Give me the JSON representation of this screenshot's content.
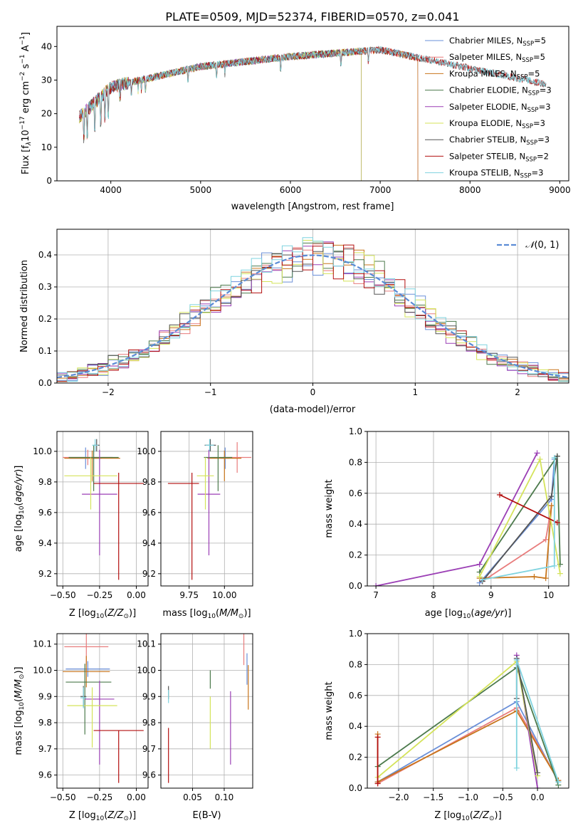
{
  "figure_title": "PLATE=0509, MJD=52374, FIBERID=0570, z=0.041",
  "model_colors": [
    "#6a8fd8",
    "#e87c7c",
    "#c8751b",
    "#4c7a4c",
    "#9b3fb5",
    "#d4e35a",
    "#555555",
    "#b30f0f",
    "#7fd3df"
  ],
  "chart_data": [
    {
      "id": "spectrum",
      "type": "line",
      "title": "PLATE=0509, MJD=52374, FIBERID=0570, z=0.041",
      "xlabel": "wavelength [Angstrom, rest frame]",
      "ylabel_parts": {
        "pre": "Flux [f",
        "sub1": "λ",
        "mid": "10",
        "sup1": "−17",
        "mid2": " erg cm",
        "sup2": "−2",
        "mid3": " s",
        "sup3": "−1",
        "mid4": " A",
        "sup4": "−1",
        "post": "]"
      },
      "xlim": [
        3400,
        9100
      ],
      "ylim": [
        0,
        46
      ],
      "xticks": [
        4000,
        5000,
        6000,
        7000,
        8000,
        9000
      ],
      "yticks": [
        0,
        10,
        20,
        30,
        40
      ],
      "grid": false,
      "legend_position": "top-right",
      "series": [
        {
          "name": "Chabrier MILES, N",
          "sub": "SSP",
          "suffix": "=5",
          "coverage": [
            3650,
            7420
          ]
        },
        {
          "name": "Salpeter MILES, N",
          "sub": "SSP",
          "suffix": "=5",
          "coverage": [
            3650,
            7420
          ]
        },
        {
          "name": "Kroupa MILES, N",
          "sub": "SSP",
          "suffix": "=5",
          "coverage": [
            3650,
            7420
          ]
        },
        {
          "name": "Chabrier ELODIE, N",
          "sub": "SSP",
          "suffix": "=3",
          "coverage": [
            3650,
            6790
          ]
        },
        {
          "name": "Salpeter ELODIE, N",
          "sub": "SSP",
          "suffix": "=3",
          "coverage": [
            3650,
            6790
          ]
        },
        {
          "name": "Kroupa ELODIE, N",
          "sub": "SSP",
          "suffix": "=3",
          "coverage": [
            3650,
            6790
          ]
        },
        {
          "name": "Chabrier STELIB, N",
          "sub": "SSP",
          "suffix": "=3",
          "coverage": [
            3650,
            8850
          ]
        },
        {
          "name": "Salpeter STELIB, N",
          "sub": "SSP",
          "suffix": "=2",
          "coverage": [
            3650,
            8850
          ]
        },
        {
          "name": "Kroupa STELIB, N",
          "sub": "SSP",
          "suffix": "=3",
          "coverage": [
            3650,
            8850
          ]
        }
      ]
    },
    {
      "id": "residuals",
      "type": "histogram",
      "xlabel": "(data-model)/error",
      "ylabel": "Normed distribution",
      "xlim": [
        -2.5,
        2.5
      ],
      "ylim": [
        0,
        0.48
      ],
      "xticks": [
        -2,
        -1,
        0,
        1,
        2
      ],
      "yticks": [
        0.0,
        0.1,
        0.2,
        0.3,
        0.4
      ],
      "grid": true,
      "legend_position": "top-right",
      "legend": "N(0,1)",
      "bin_width": 0.1
    },
    {
      "id": "age_vs_z",
      "type": "errorbar",
      "xlabel": "Z [log10(Z/Z⊙)]",
      "ylabel": "age  [log10(age/yr)]",
      "xlim": [
        -0.54,
        0.08
      ],
      "ylim": [
        9.12,
        10.13
      ],
      "xticks": [
        -0.5,
        -0.25,
        0.0
      ],
      "yticks": [
        9.2,
        9.4,
        9.6,
        9.8,
        10.0
      ],
      "grid": true,
      "points": [
        {
          "x": -0.345,
          "y": 9.955,
          "xerr": [
            0.11,
            0.11
          ],
          "yerr": [
            0.07,
            0.07
          ]
        },
        {
          "x": -0.33,
          "y": 9.96,
          "xerr": [
            0.17,
            0.17
          ],
          "yerr": [
            0.05,
            0.05
          ]
        },
        {
          "x": -0.3,
          "y": 9.955,
          "xerr": [
            0.19,
            0.19
          ],
          "yerr": [
            0.15,
            0.05
          ]
        },
        {
          "x": -0.29,
          "y": 9.96,
          "xerr": [
            0.17,
            0.17
          ],
          "yerr": [
            0.22,
            0.08
          ]
        },
        {
          "x": -0.25,
          "y": 9.72,
          "xerr": [
            0.12,
            0.12
          ],
          "yerr": [
            0.4,
            0.29
          ]
        },
        {
          "x": -0.31,
          "y": 9.84,
          "xerr": [
            0.18,
            0.18
          ],
          "yerr": [
            0.22,
            0.12
          ]
        },
        {
          "x": -0.27,
          "y": 10.04,
          "xerr": [
            0.02,
            0.02
          ],
          "yerr": [
            0.04,
            0.04
          ]
        },
        {
          "x": -0.12,
          "y": 9.79,
          "xerr": [
            0.17,
            0.17
          ],
          "yerr": [
            0.63,
            0.07
          ]
        },
        {
          "x": -0.28,
          "y": 10.04,
          "xerr": [
            0.02,
            0.02
          ],
          "yerr": [
            0.04,
            0.04
          ]
        }
      ]
    },
    {
      "id": "age_vs_mass",
      "type": "errorbar",
      "xlabel": "mass [log10(M/M⊙)]",
      "ylabel": "",
      "xlim": [
        9.55,
        10.2
      ],
      "ylim": [
        9.12,
        10.13
      ],
      "xticks": [
        9.75,
        10.0
      ],
      "yticks": [
        9.2,
        9.4,
        9.6,
        9.8,
        10.0
      ],
      "grid": true,
      "points": [
        {
          "x": 10.005,
          "y": 9.955,
          "xerr": [
            0.03,
            0.03
          ],
          "yerr": [
            0.07,
            0.07
          ]
        },
        {
          "x": 10.09,
          "y": 9.96,
          "xerr": [
            0.1,
            0.1
          ],
          "yerr": [
            0.1,
            0.1
          ]
        },
        {
          "x": 10.0,
          "y": 9.955,
          "xerr": [
            0.12,
            0.12
          ],
          "yerr": [
            0.15,
            0.05
          ]
        },
        {
          "x": 9.955,
          "y": 9.96,
          "xerr": [
            0.1,
            0.1
          ],
          "yerr": [
            0.22,
            0.08
          ]
        },
        {
          "x": 9.89,
          "y": 9.72,
          "xerr": [
            0.08,
            0.08
          ],
          "yerr": [
            0.4,
            0.29
          ]
        },
        {
          "x": 9.865,
          "y": 9.84,
          "xerr": [
            0.06,
            0.06
          ],
          "yerr": [
            0.22,
            0.12
          ]
        },
        {
          "x": 9.9,
          "y": 10.04,
          "xerr": [
            0.04,
            0.04
          ],
          "yerr": [
            0.04,
            0.04
          ]
        },
        {
          "x": 9.77,
          "y": 9.79,
          "xerr": [
            0.17,
            0.05
          ],
          "yerr": [
            0.63,
            0.07
          ]
        },
        {
          "x": 9.895,
          "y": 10.04,
          "xerr": [
            0.03,
            0.03
          ],
          "yerr": [
            0.04,
            0.04
          ]
        }
      ]
    },
    {
      "id": "weight_vs_age",
      "type": "line",
      "xlabel": "age  [log10(age/yr)]",
      "ylabel": "mass weight",
      "xlim": [
        6.85,
        10.35
      ],
      "ylim": [
        0.0,
        1.0
      ],
      "xticks": [
        7,
        8,
        9,
        10
      ],
      "yticks": [
        0.0,
        0.2,
        0.4,
        0.6,
        0.8,
        1.0
      ],
      "grid": true,
      "series": [
        {
          "x": [
            8.8,
            10.05,
            10.1
          ],
          "y": [
            0.02,
            0.56,
            0.82
          ]
        },
        {
          "x": [
            8.85,
            9.95,
            10.05
          ],
          "y": [
            0.03,
            0.3,
            0.52
          ]
        },
        {
          "x": [
            8.8,
            9.75,
            9.95,
            10.05
          ],
          "y": [
            0.05,
            0.06,
            0.05,
            0.52
          ]
        },
        {
          "x": [
            8.8,
            10.15,
            10.2
          ],
          "y": [
            0.09,
            0.84,
            0.14
          ]
        },
        {
          "x": [
            7.0,
            8.8,
            9.8
          ],
          "y": [
            0.0,
            0.14,
            0.86
          ]
        },
        {
          "x": [
            8.8,
            9.85,
            10.2
          ],
          "y": [
            0.06,
            0.82,
            0.08
          ]
        },
        {
          "x": [
            8.85,
            10.05,
            10.15
          ],
          "y": [
            0.03,
            0.58,
            0.84
          ]
        },
        {
          "x": [
            9.15,
            10.15
          ],
          "y": [
            0.59,
            0.41
          ]
        },
        {
          "x": [
            8.85,
            10.1,
            10.1
          ],
          "y": [
            0.04,
            0.13,
            0.83
          ]
        }
      ]
    },
    {
      "id": "mass_vs_z",
      "type": "errorbar",
      "xlabel": "Z [log10(Z/Z⊙)]",
      "ylabel": "mass [log10(M/M⊙)]",
      "xlim": [
        -0.54,
        0.08
      ],
      "ylim": [
        9.55,
        10.14
      ],
      "xticks": [
        -0.5,
        -0.25,
        0.0
      ],
      "yticks": [
        9.6,
        9.7,
        9.8,
        9.9,
        10.0,
        10.1
      ],
      "grid": true,
      "points": [
        {
          "x": -0.33,
          "y": 10.005,
          "xerr": [
            0.15,
            0.15
          ],
          "yerr": [
            0.03,
            0.03
          ]
        },
        {
          "x": -0.34,
          "y": 10.09,
          "xerr": [
            0.15,
            0.15
          ],
          "yerr": [
            0.07,
            0.07
          ]
        },
        {
          "x": -0.34,
          "y": 9.995,
          "xerr": [
            0.16,
            0.16
          ],
          "yerr": [
            0.06,
            0.06
          ]
        },
        {
          "x": -0.35,
          "y": 9.955,
          "xerr": [
            0.13,
            0.18
          ],
          "yerr": [
            0.2,
            0.07
          ]
        },
        {
          "x": -0.25,
          "y": 9.89,
          "xerr": [
            0.1,
            0.1
          ],
          "yerr": [
            0.25,
            0.07
          ]
        },
        {
          "x": -0.3,
          "y": 9.865,
          "xerr": [
            0.17,
            0.17
          ],
          "yerr": [
            0.16,
            0.07
          ]
        },
        {
          "x": -0.36,
          "y": 9.9,
          "xerr": [
            0.02,
            0.02
          ],
          "yerr": [
            0.04,
            0.04
          ]
        },
        {
          "x": -0.12,
          "y": 9.77,
          "xerr": [
            0.17,
            0.17
          ],
          "yerr": [
            0.2,
            0.0
          ]
        },
        {
          "x": -0.36,
          "y": 9.895,
          "xerr": [
            0.02,
            0.02
          ],
          "yerr": [
            0.04,
            0.04
          ]
        }
      ]
    },
    {
      "id": "mass_vs_ebv",
      "type": "errorbar",
      "xlabel": "E(B-V)",
      "ylabel": "",
      "xlim": [
        0.0,
        0.145
      ],
      "ylim": [
        9.55,
        10.14
      ],
      "xticks": [
        0.05,
        0.1
      ],
      "yticks": [
        9.6,
        9.7,
        9.8,
        9.9,
        10.0,
        10.1
      ],
      "grid": true,
      "points": [
        {
          "x": 0.136,
          "y": 9.995,
          "xerr": [
            0,
            0
          ],
          "yerr": [
            0.05,
            0.07
          ]
        },
        {
          "x": 0.131,
          "y": 10.09,
          "xerr": [
            0,
            0
          ],
          "yerr": [
            0.07,
            0.07
          ]
        },
        {
          "x": 0.138,
          "y": 9.95,
          "xerr": [
            0,
            0
          ],
          "yerr": [
            0.1,
            0.07
          ]
        },
        {
          "x": 0.078,
          "y": 9.97,
          "xerr": [
            0,
            0
          ],
          "yerr": [
            0.04,
            0.03
          ]
        },
        {
          "x": 0.11,
          "y": 9.8,
          "xerr": [
            0,
            0
          ],
          "yerr": [
            0.16,
            0.12
          ]
        },
        {
          "x": 0.078,
          "y": 9.8,
          "xerr": [
            0,
            0
          ],
          "yerr": [
            0.1,
            0.1
          ]
        },
        {
          "x": 0.012,
          "y": 9.91,
          "xerr": [
            0,
            0
          ],
          "yerr": [
            0.02,
            0.03
          ]
        },
        {
          "x": 0.012,
          "y": 9.67,
          "xerr": [
            0,
            0
          ],
          "yerr": [
            0.1,
            0.11
          ]
        },
        {
          "x": 0.012,
          "y": 9.895,
          "xerr": [
            0,
            0
          ],
          "yerr": [
            0.02,
            0.03
          ]
        }
      ]
    },
    {
      "id": "weight_vs_z",
      "type": "line",
      "xlabel": "Z [log10(Z/Z⊙)]",
      "ylabel": "mass weight",
      "xlim": [
        -2.45,
        0.45
      ],
      "ylim": [
        0.0,
        1.0
      ],
      "xticks": [
        -2.0,
        -1.5,
        -1.0,
        -0.5,
        0.0
      ],
      "yticks": [
        0.0,
        0.2,
        0.4,
        0.6,
        0.8,
        1.0
      ],
      "grid": true,
      "series": [
        {
          "x": [
            -2.3,
            -0.3,
            0.3
          ],
          "y": [
            0.04,
            0.56,
            0.04
          ]
        },
        {
          "x": [
            -2.3,
            -0.3,
            0.3
          ],
          "y": [
            0.03,
            0.52,
            0.05
          ]
        },
        {
          "x": [
            -2.3,
            -2.3,
            -0.3,
            0.3
          ],
          "y": [
            0.35,
            0.04,
            0.5,
            0.05
          ]
        },
        {
          "x": [
            -2.3,
            -0.3,
            0.3
          ],
          "y": [
            0.14,
            0.78,
            0.02
          ]
        },
        {
          "x": [
            -0.3,
            0.0
          ],
          "y": [
            0.86,
            0.0
          ]
        },
        {
          "x": [
            -2.3,
            -0.3,
            0.0
          ],
          "y": [
            0.07,
            0.82,
            0.08
          ]
        },
        {
          "x": [
            -0.3,
            -0.3,
            0.0
          ],
          "y": [
            0.58,
            0.84,
            0.1
          ]
        },
        {
          "x": [
            -2.3,
            -2.3
          ],
          "y": [
            0.33,
            0.03
          ]
        },
        {
          "x": [
            -0.3,
            -0.3,
            0.3
          ],
          "y": [
            0.13,
            0.83,
            0.04
          ]
        }
      ]
    }
  ]
}
